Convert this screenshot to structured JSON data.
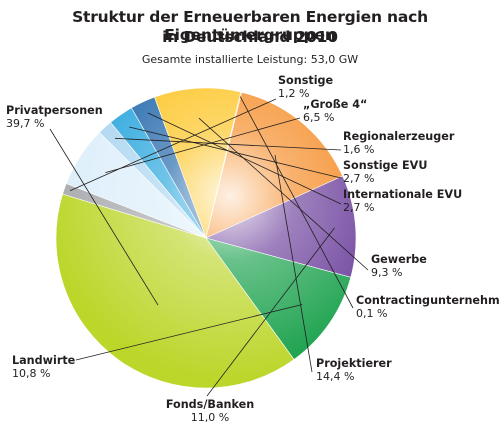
{
  "title_line1": "Struktur der Erneuerbaren Energien nach Eigentümergruppen",
  "title_line2": "in Deutschland 2010",
  "subtitle": "Gesamte installierte Leistung: 53,0 GW",
  "chart_data": {
    "type": "pie",
    "title": "Struktur der Erneuerbaren Energien nach Eigentümergruppen in Deutschland 2010",
    "subtitle": "Gesamte installierte Leistung: 53,0 GW",
    "unit": "%",
    "slices": [
      {
        "label": "Sonstige",
        "value": 1.2,
        "value_label": "1,2 %",
        "color": "#a7a9ac"
      },
      {
        "label": "„Große 4“",
        "value": 6.5,
        "value_label": "6,5 %",
        "color": "#dceefa"
      },
      {
        "label": "Regionalerzeuger",
        "value": 1.6,
        "value_label": "1,6 %",
        "color": "#a9d4f0"
      },
      {
        "label": "Sonstige EVU",
        "value": 2.7,
        "value_label": "2,7 %",
        "color": "#22a3dc"
      },
      {
        "label": "Internationale EVU",
        "value": 2.7,
        "value_label": "2,7 %",
        "color": "#1b63a8"
      },
      {
        "label": "Gewerbe",
        "value": 9.3,
        "value_label": "9,3 %",
        "color": "#fcc21a"
      },
      {
        "label": "Contractingunternehmen",
        "value": 0.1,
        "value_label": "0,1 %",
        "color": "#f7a21b"
      },
      {
        "label": "Projektierer",
        "value": 14.4,
        "value_label": "14,4 %",
        "color": "#f5881f"
      },
      {
        "label": "Fonds/Banken",
        "value": 11.0,
        "value_label": "11,0 %",
        "color": "#6a3d9a"
      },
      {
        "label": "Landwirte",
        "value": 10.8,
        "value_label": "10,8 %",
        "color": "#17a04a"
      },
      {
        "label": "Privatpersonen",
        "value": 39.7,
        "value_label": "39,7 %",
        "color": "#bcd62a"
      }
    ]
  }
}
